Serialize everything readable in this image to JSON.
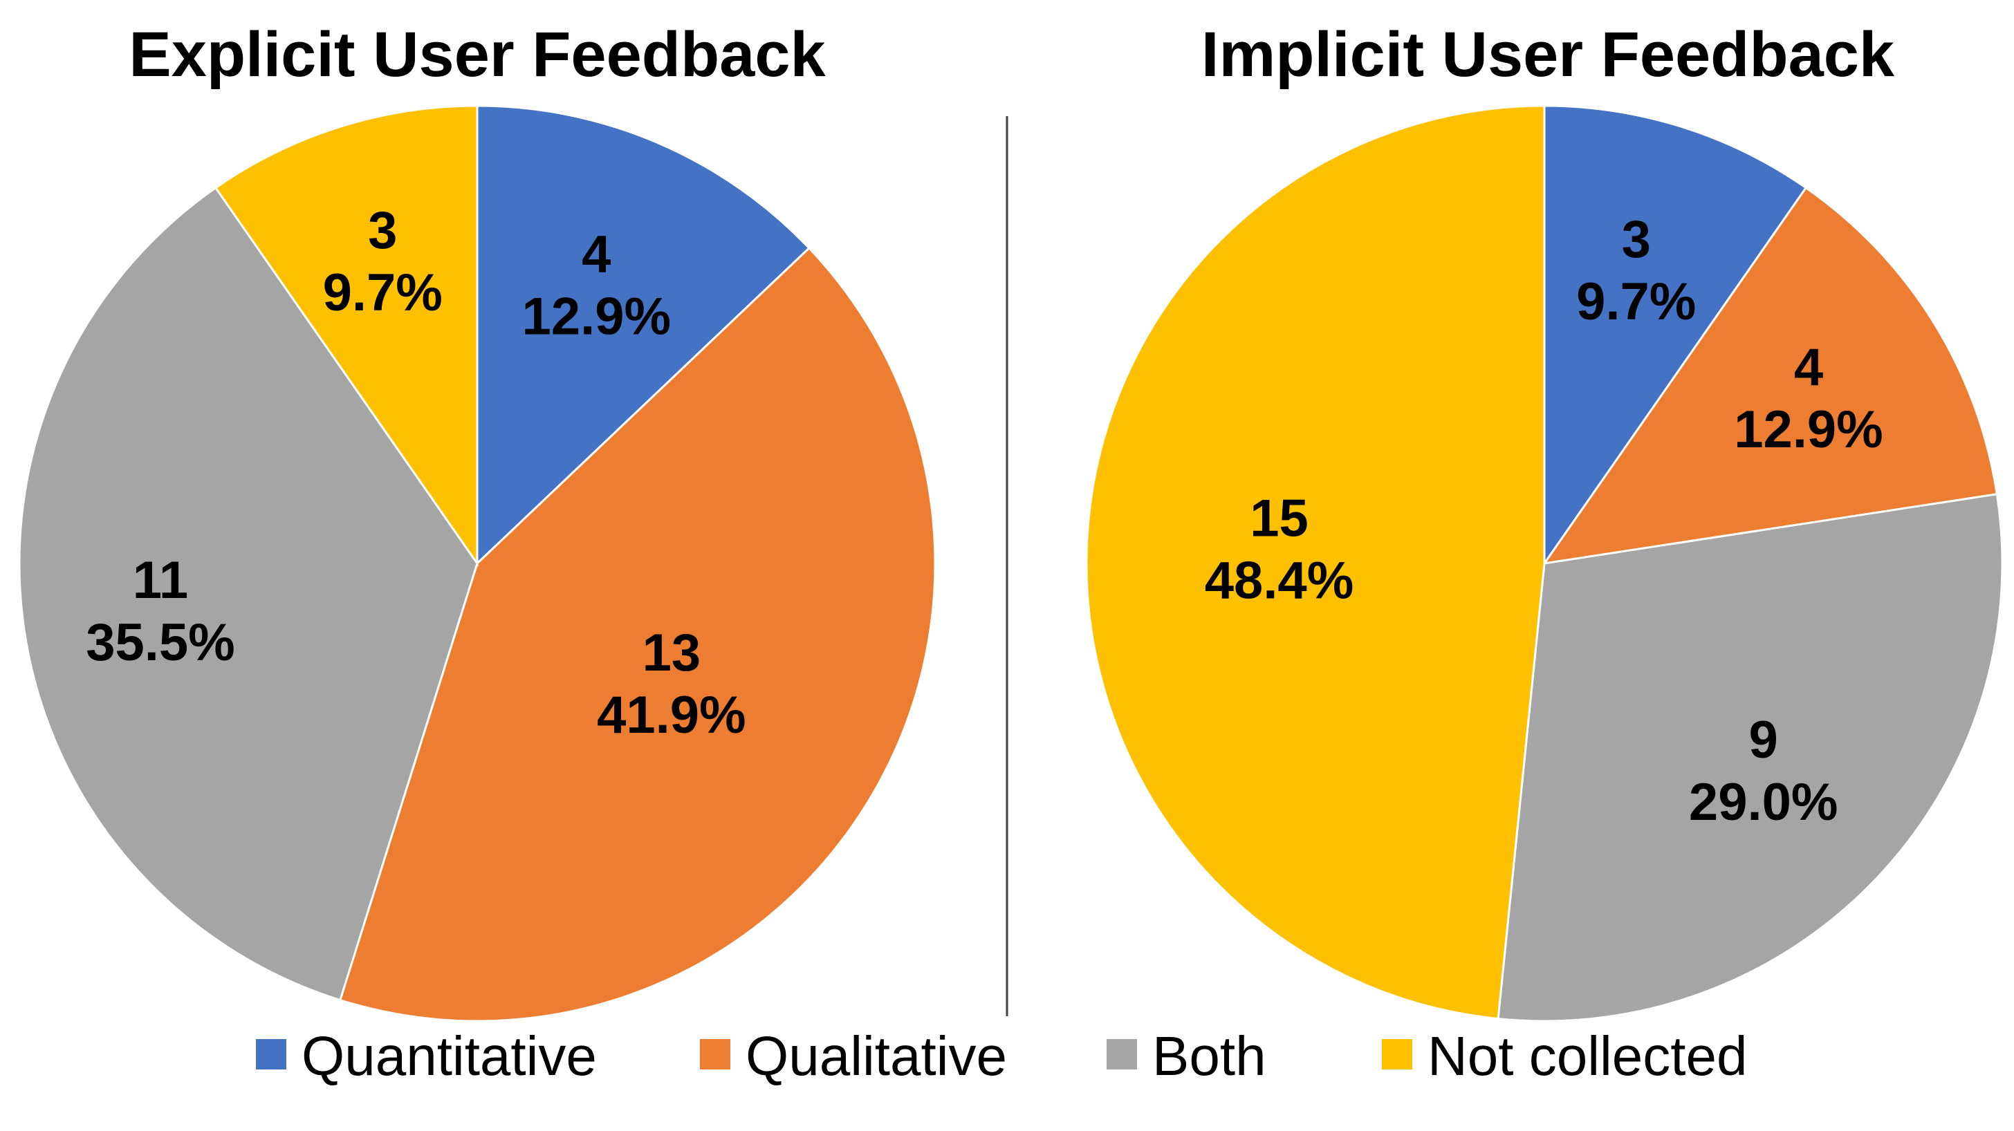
{
  "chart_data": [
    {
      "type": "pie",
      "title": "Explicit User Feedback",
      "categories": [
        "Quantitative",
        "Qualitative",
        "Both",
        "Not collected"
      ],
      "values": [
        4,
        13,
        11,
        3
      ],
      "percent_labels": [
        "12.9%",
        "41.9%",
        "35.5%",
        "9.7%"
      ],
      "colors": [
        "#4472C4",
        "#ED7D31",
        "#A5A5A5",
        "#FFC000"
      ]
    },
    {
      "type": "pie",
      "title": "Implicit User Feedback",
      "categories": [
        "Quantitative",
        "Qualitative",
        "Both",
        "Not collected"
      ],
      "values": [
        3,
        4,
        9,
        15
      ],
      "percent_labels": [
        "9.7%",
        "12.9%",
        "29.0%",
        "48.4%"
      ],
      "colors": [
        "#4472C4",
        "#ED7D31",
        "#A5A5A5",
        "#FFC000"
      ]
    }
  ],
  "legend": [
    {
      "label": "Quantitative",
      "color": "#4472C4"
    },
    {
      "label": "Qualitative",
      "color": "#ED7D31"
    },
    {
      "label": "Both",
      "color": "#A5A5A5"
    },
    {
      "label": "Not collected",
      "color": "#FFC000"
    }
  ],
  "legend_position": "bottom",
  "palette": {
    "quantitative": "#4472C4",
    "qualitative": "#ED7D31",
    "both": "#A5A5A5",
    "not_collected": "#FBBF3B"
  }
}
